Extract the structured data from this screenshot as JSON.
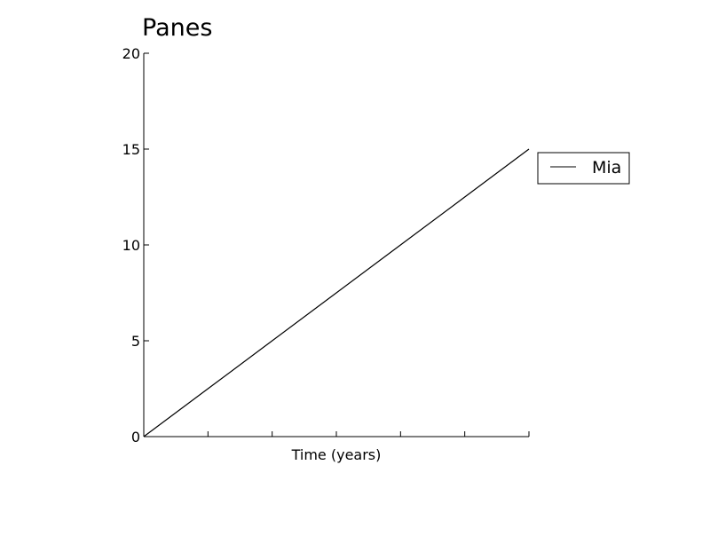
{
  "chart_data": {
    "type": "line",
    "title": "Panes",
    "xlabel": "Time (years)",
    "ylabel": "",
    "x": [
      0,
      1,
      2,
      3,
      4,
      5,
      6
    ],
    "xlim": [
      0,
      6
    ],
    "ylim": [
      0,
      20
    ],
    "yticks": [
      0,
      5,
      10,
      15,
      20
    ],
    "ytick_labels": [
      "0",
      "5",
      "10",
      "15",
      "20"
    ],
    "xticks": [
      0,
      1,
      2,
      3,
      4,
      5,
      6
    ],
    "xtick_labels": [],
    "grid": false,
    "legend_position": "right",
    "series": [
      {
        "name": "Mia",
        "color": "#000000",
        "values": [
          0,
          2.5,
          5,
          7.5,
          10,
          12.5,
          15
        ]
      }
    ]
  }
}
